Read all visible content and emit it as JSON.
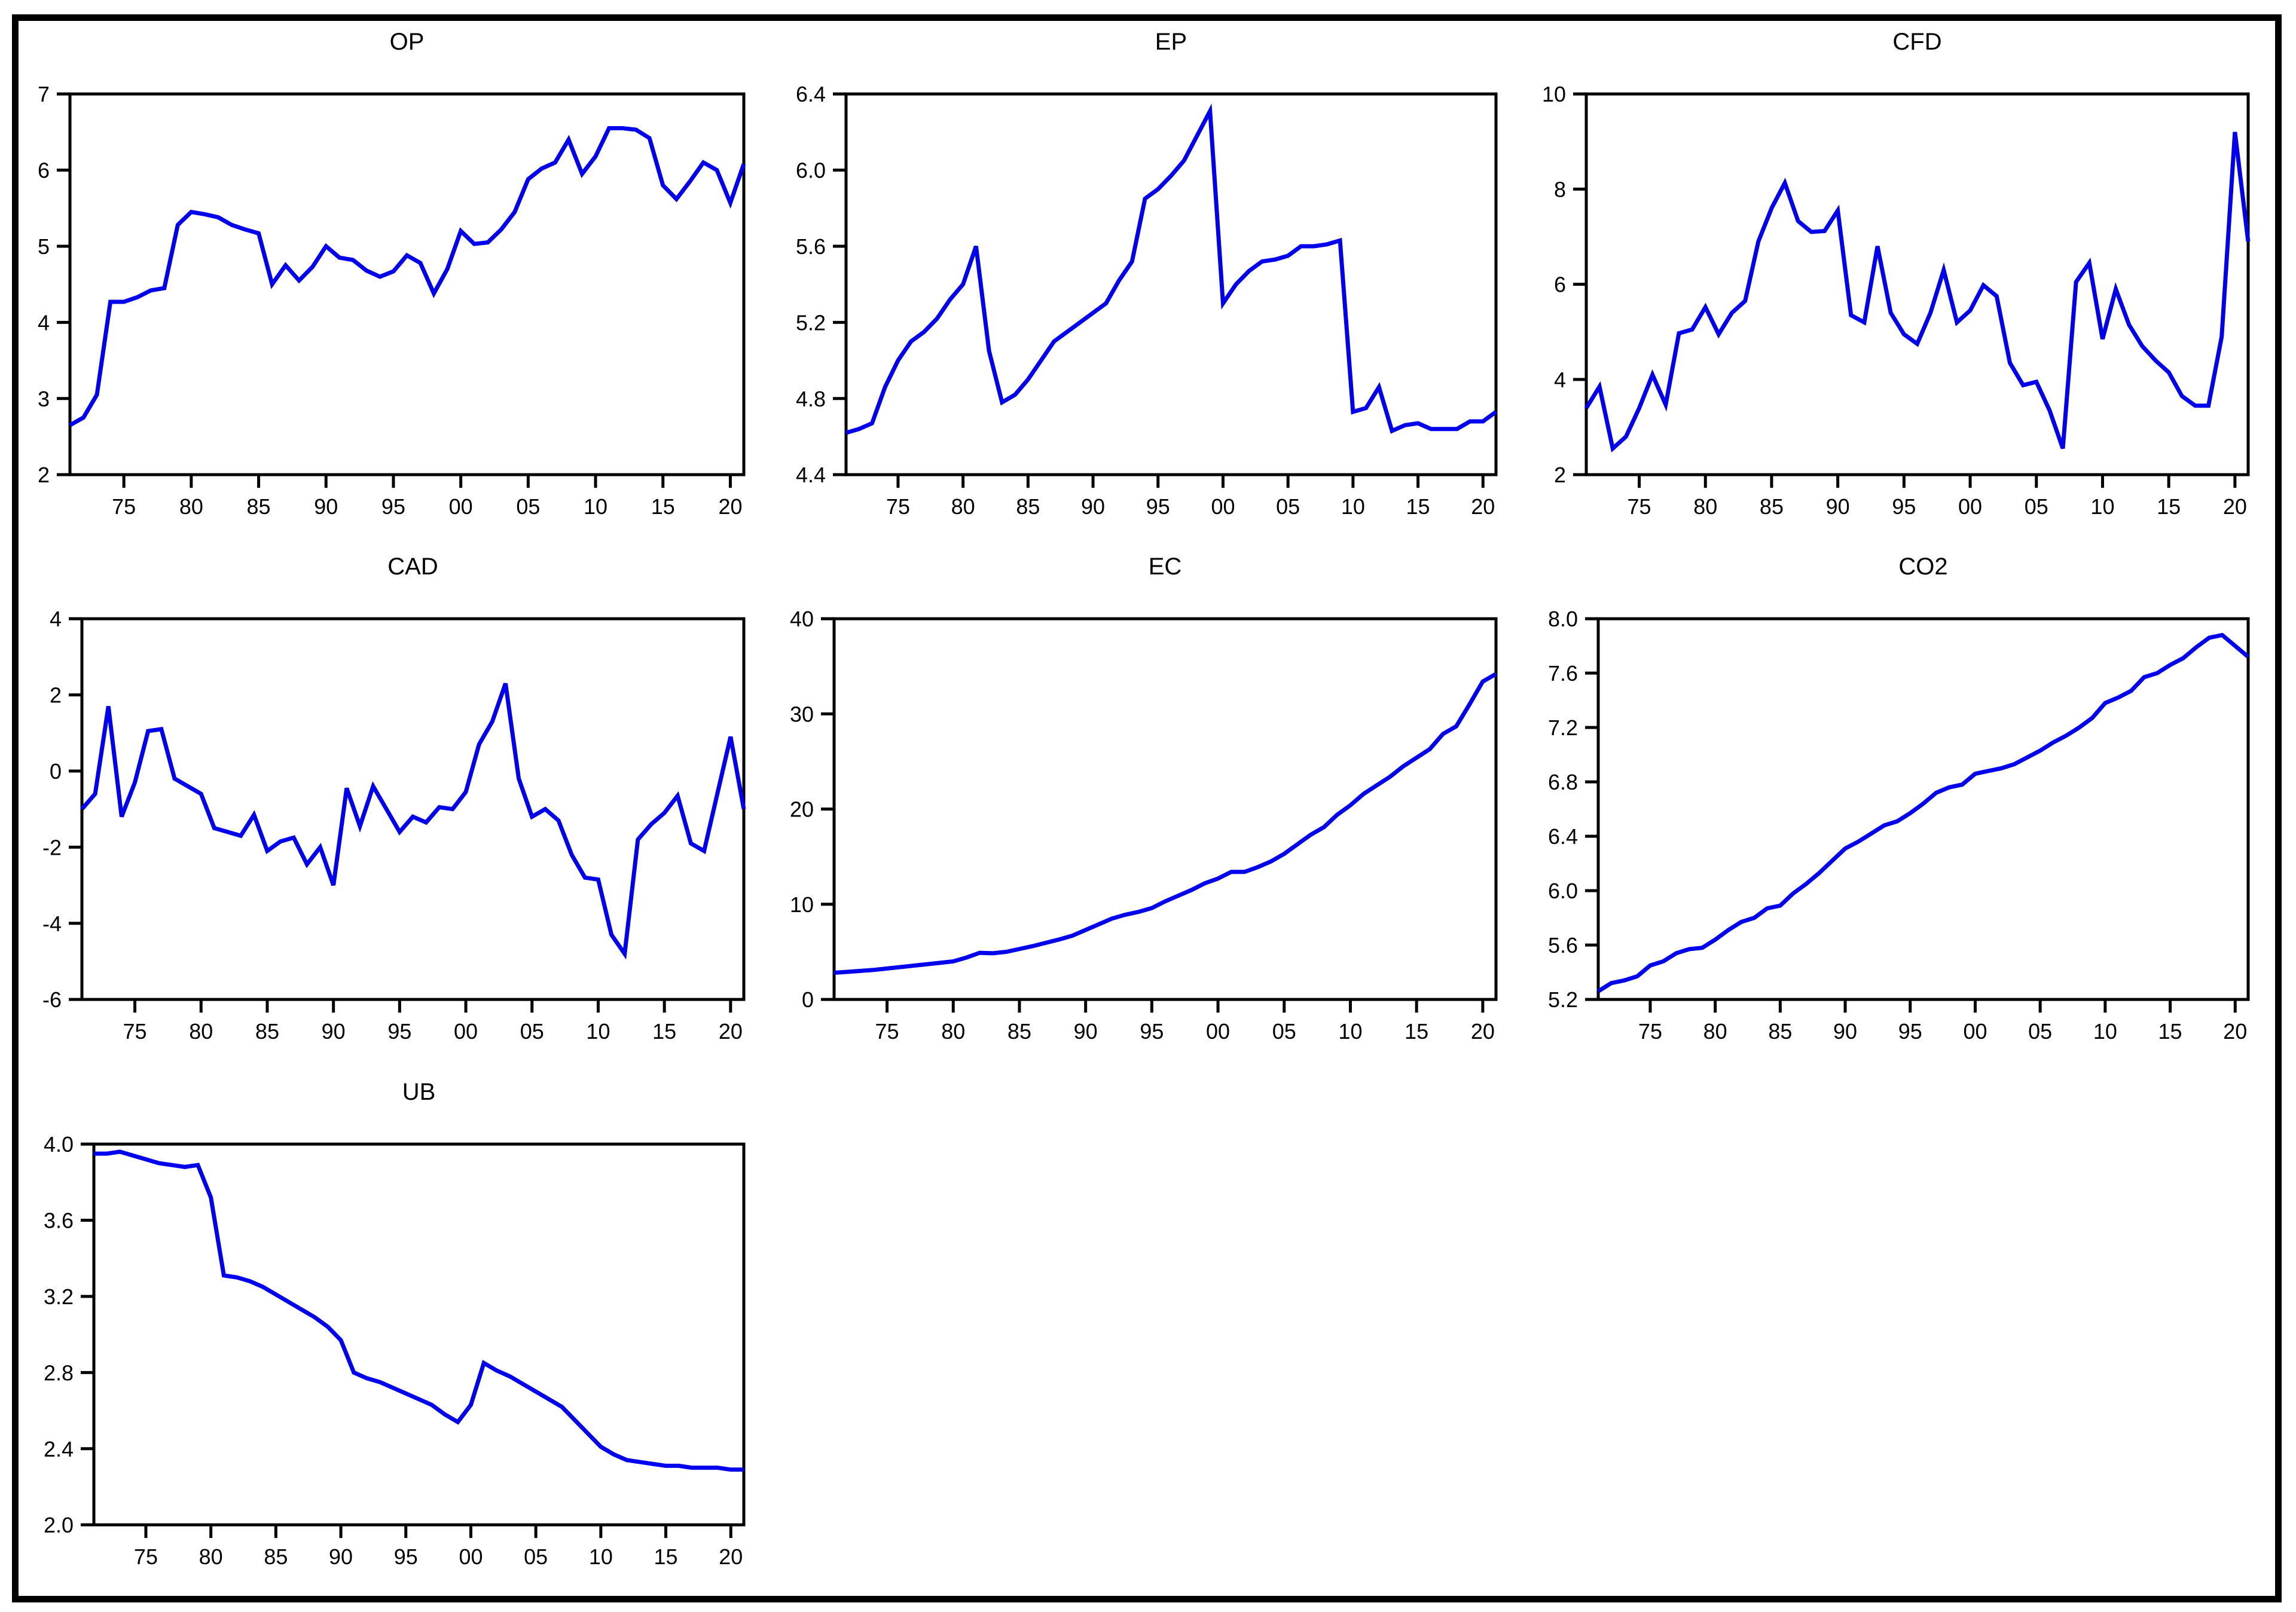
{
  "figure": {
    "background": "#ffffff",
    "outer_border_color": "#000000",
    "frame_color": "#000000",
    "line_color": "#0000ee",
    "layout": "3x3 grid, 7 charts, annual series 1971-2021"
  },
  "chart_data": [
    {
      "id": "op",
      "type": "line",
      "title": "OP",
      "x_start": 1971,
      "x_end": 2021,
      "x_tick_years": [
        1975,
        1980,
        1985,
        1990,
        1995,
        2000,
        2005,
        2010,
        2015,
        2020
      ],
      "x_tick_labels": [
        "75",
        "80",
        "85",
        "90",
        "95",
        "00",
        "05",
        "10",
        "15",
        "20"
      ],
      "ylim": [
        2,
        7
      ],
      "y_ticks": [
        2,
        3,
        4,
        5,
        6,
        7
      ],
      "y_tick_labels": [
        "2",
        "3",
        "4",
        "5",
        "6",
        "7"
      ],
      "grid": false,
      "legend": "none",
      "values": [
        2.65,
        2.75,
        3.05,
        4.27,
        4.27,
        4.33,
        4.42,
        4.45,
        5.28,
        5.45,
        5.42,
        5.38,
        5.28,
        5.22,
        5.17,
        4.5,
        4.75,
        4.55,
        4.73,
        5.0,
        4.85,
        4.82,
        4.68,
        4.6,
        4.67,
        4.88,
        4.78,
        4.38,
        4.7,
        5.2,
        5.03,
        5.05,
        5.22,
        5.45,
        5.88,
        6.02,
        6.1,
        6.4,
        5.95,
        6.18,
        6.55,
        6.55,
        6.53,
        6.42,
        5.8,
        5.62,
        5.85,
        6.1,
        6.0,
        5.57,
        6.08
      ]
    },
    {
      "id": "ep",
      "type": "line",
      "title": "EP",
      "x_start": 1971,
      "x_end": 2021,
      "x_tick_years": [
        1975,
        1980,
        1985,
        1990,
        1995,
        2000,
        2005,
        2010,
        2015,
        2020
      ],
      "x_tick_labels": [
        "75",
        "80",
        "85",
        "90",
        "95",
        "00",
        "05",
        "10",
        "15",
        "20"
      ],
      "ylim": [
        4.4,
        6.4
      ],
      "y_ticks": [
        4.4,
        4.8,
        5.2,
        5.6,
        6.0,
        6.4
      ],
      "y_tick_labels": [
        "4.4",
        "4.8",
        "5.2",
        "5.6",
        "6.0",
        "6.4"
      ],
      "grid": false,
      "legend": "none",
      "values": [
        4.62,
        4.64,
        4.67,
        4.86,
        5.0,
        5.1,
        5.15,
        5.22,
        5.32,
        5.4,
        5.6,
        5.05,
        4.78,
        4.82,
        4.9,
        5.0,
        5.1,
        5.15,
        5.2,
        5.25,
        5.3,
        5.42,
        5.52,
        5.85,
        5.9,
        5.97,
        6.05,
        6.18,
        6.31,
        5.3,
        5.4,
        5.47,
        5.52,
        5.53,
        5.55,
        5.6,
        5.6,
        5.61,
        5.63,
        4.73,
        4.75,
        4.86,
        4.63,
        4.66,
        4.67,
        4.64,
        4.64,
        4.64,
        4.68,
        4.68,
        4.73
      ]
    },
    {
      "id": "cfd",
      "type": "line",
      "title": "CFD",
      "x_start": 1971,
      "x_end": 2021,
      "x_tick_years": [
        1975,
        1980,
        1985,
        1990,
        1995,
        2000,
        2005,
        2010,
        2015,
        2020
      ],
      "x_tick_labels": [
        "75",
        "80",
        "85",
        "90",
        "95",
        "00",
        "05",
        "10",
        "15",
        "20"
      ],
      "ylim": [
        2,
        10
      ],
      "y_ticks": [
        2,
        4,
        6,
        8,
        10
      ],
      "y_tick_labels": [
        "2",
        "4",
        "6",
        "8",
        "10"
      ],
      "grid": false,
      "legend": "none",
      "values": [
        3.4,
        3.85,
        2.55,
        2.8,
        3.4,
        4.1,
        3.47,
        4.97,
        5.05,
        5.52,
        4.95,
        5.4,
        5.65,
        6.9,
        7.6,
        8.13,
        7.33,
        7.1,
        7.12,
        7.55,
        5.35,
        5.2,
        6.8,
        5.4,
        4.95,
        4.75,
        5.4,
        6.3,
        5.2,
        5.45,
        5.98,
        5.75,
        4.35,
        3.88,
        3.95,
        3.35,
        2.55,
        6.05,
        6.45,
        4.85,
        5.9,
        5.15,
        4.7,
        4.4,
        4.15,
        3.65,
        3.45,
        3.45,
        4.9,
        9.2,
        6.9
      ]
    },
    {
      "id": "cad",
      "type": "line",
      "title": "CAD",
      "x_start": 1971,
      "x_end": 2021,
      "x_tick_years": [
        1975,
        1980,
        1985,
        1990,
        1995,
        2000,
        2005,
        2010,
        2015,
        2020
      ],
      "x_tick_labels": [
        "75",
        "80",
        "85",
        "90",
        "95",
        "00",
        "05",
        "10",
        "15",
        "20"
      ],
      "ylim": [
        -6,
        4
      ],
      "y_ticks": [
        -6,
        -4,
        -2,
        0,
        2,
        4
      ],
      "y_tick_labels": [
        "-6",
        "-4",
        "-2",
        "0",
        "2",
        "4"
      ],
      "grid": false,
      "legend": "none",
      "values": [
        -1.0,
        -0.6,
        1.7,
        -1.2,
        -0.3,
        1.05,
        1.1,
        -0.2,
        -0.4,
        -0.6,
        -1.5,
        -1.6,
        -1.7,
        -1.15,
        -2.1,
        -1.85,
        -1.75,
        -2.45,
        -2.0,
        -3.0,
        -0.45,
        -1.45,
        -0.4,
        -1.0,
        -1.6,
        -1.2,
        -1.35,
        -0.95,
        -1.0,
        -0.55,
        0.7,
        1.3,
        2.3,
        -0.2,
        -1.2,
        -1.0,
        -1.3,
        -2.2,
        -2.8,
        -2.85,
        -4.3,
        -4.8,
        -1.8,
        -1.4,
        -1.1,
        -0.65,
        -1.9,
        -2.1,
        -0.6,
        0.9,
        -1.0
      ]
    },
    {
      "id": "ec",
      "type": "line",
      "title": "EC",
      "x_start": 1971,
      "x_end": 2021,
      "x_tick_years": [
        1975,
        1980,
        1985,
        1990,
        1995,
        2000,
        2005,
        2010,
        2015,
        2020
      ],
      "x_tick_labels": [
        "75",
        "80",
        "85",
        "90",
        "95",
        "00",
        "05",
        "10",
        "15",
        "20"
      ],
      "ylim": [
        0,
        40
      ],
      "y_ticks": [
        0,
        10,
        20,
        30,
        40
      ],
      "y_tick_labels": [
        "0",
        "10",
        "20",
        "30",
        "40"
      ],
      "grid": false,
      "legend": "none",
      "values": [
        2.8,
        2.9,
        3.0,
        3.1,
        3.25,
        3.4,
        3.55,
        3.7,
        3.85,
        4.0,
        4.4,
        4.9,
        4.85,
        5.0,
        5.3,
        5.6,
        5.95,
        6.3,
        6.7,
        7.3,
        7.9,
        8.5,
        8.9,
        9.2,
        9.6,
        10.3,
        10.9,
        11.5,
        12.2,
        12.7,
        13.4,
        13.4,
        13.9,
        14.5,
        15.3,
        16.3,
        17.3,
        18.1,
        19.4,
        20.4,
        21.6,
        22.5,
        23.4,
        24.5,
        25.4,
        26.3,
        27.9,
        28.7,
        31.0,
        33.4,
        34.2
      ]
    },
    {
      "id": "co2",
      "type": "line",
      "title": "CO2",
      "x_start": 1971,
      "x_end": 2021,
      "x_tick_years": [
        1975,
        1980,
        1985,
        1990,
        1995,
        2000,
        2005,
        2010,
        2015,
        2020
      ],
      "x_tick_labels": [
        "75",
        "80",
        "85",
        "90",
        "95",
        "00",
        "05",
        "10",
        "15",
        "20"
      ],
      "ylim": [
        5.2,
        8.0
      ],
      "y_ticks": [
        5.2,
        5.6,
        6.0,
        6.4,
        6.8,
        7.2,
        7.6,
        8.0
      ],
      "y_tick_labels": [
        "5.2",
        "5.6",
        "6.0",
        "6.4",
        "6.8",
        "7.2",
        "7.6",
        "8.0"
      ],
      "grid": false,
      "legend": "none",
      "values": [
        5.26,
        5.32,
        5.34,
        5.37,
        5.45,
        5.48,
        5.54,
        5.57,
        5.58,
        5.64,
        5.71,
        5.77,
        5.8,
        5.87,
        5.89,
        5.98,
        6.05,
        6.13,
        6.22,
        6.31,
        6.36,
        6.42,
        6.48,
        6.51,
        6.57,
        6.64,
        6.72,
        6.76,
        6.78,
        6.86,
        6.88,
        6.9,
        6.93,
        6.98,
        7.03,
        7.09,
        7.14,
        7.2,
        7.27,
        7.38,
        7.42,
        7.47,
        7.57,
        7.6,
        7.66,
        7.71,
        7.79,
        7.86,
        7.88,
        7.8,
        7.72
      ]
    },
    {
      "id": "ub",
      "type": "line",
      "title": "UB",
      "x_start": 1971,
      "x_end": 2021,
      "x_tick_years": [
        1975,
        1980,
        1985,
        1990,
        1995,
        2000,
        2005,
        2010,
        2015,
        2020
      ],
      "x_tick_labels": [
        "75",
        "80",
        "85",
        "90",
        "95",
        "00",
        "05",
        "10",
        "15",
        "20"
      ],
      "ylim": [
        2.0,
        4.0
      ],
      "y_ticks": [
        2.0,
        2.4,
        2.8,
        3.2,
        3.6,
        4.0
      ],
      "y_tick_labels": [
        "2.0",
        "2.4",
        "2.8",
        "3.2",
        "3.6",
        "4.0"
      ],
      "grid": false,
      "legend": "none",
      "values": [
        3.95,
        3.95,
        3.96,
        3.94,
        3.92,
        3.9,
        3.89,
        3.88,
        3.89,
        3.72,
        3.31,
        3.3,
        3.28,
        3.25,
        3.21,
        3.17,
        3.13,
        3.09,
        3.04,
        2.97,
        2.8,
        2.77,
        2.75,
        2.72,
        2.69,
        2.66,
        2.63,
        2.58,
        2.54,
        2.63,
        2.85,
        2.81,
        2.78,
        2.74,
        2.7,
        2.66,
        2.62,
        2.55,
        2.48,
        2.41,
        2.37,
        2.34,
        2.33,
        2.32,
        2.31,
        2.31,
        2.3,
        2.3,
        2.3,
        2.29,
        2.29
      ]
    }
  ]
}
